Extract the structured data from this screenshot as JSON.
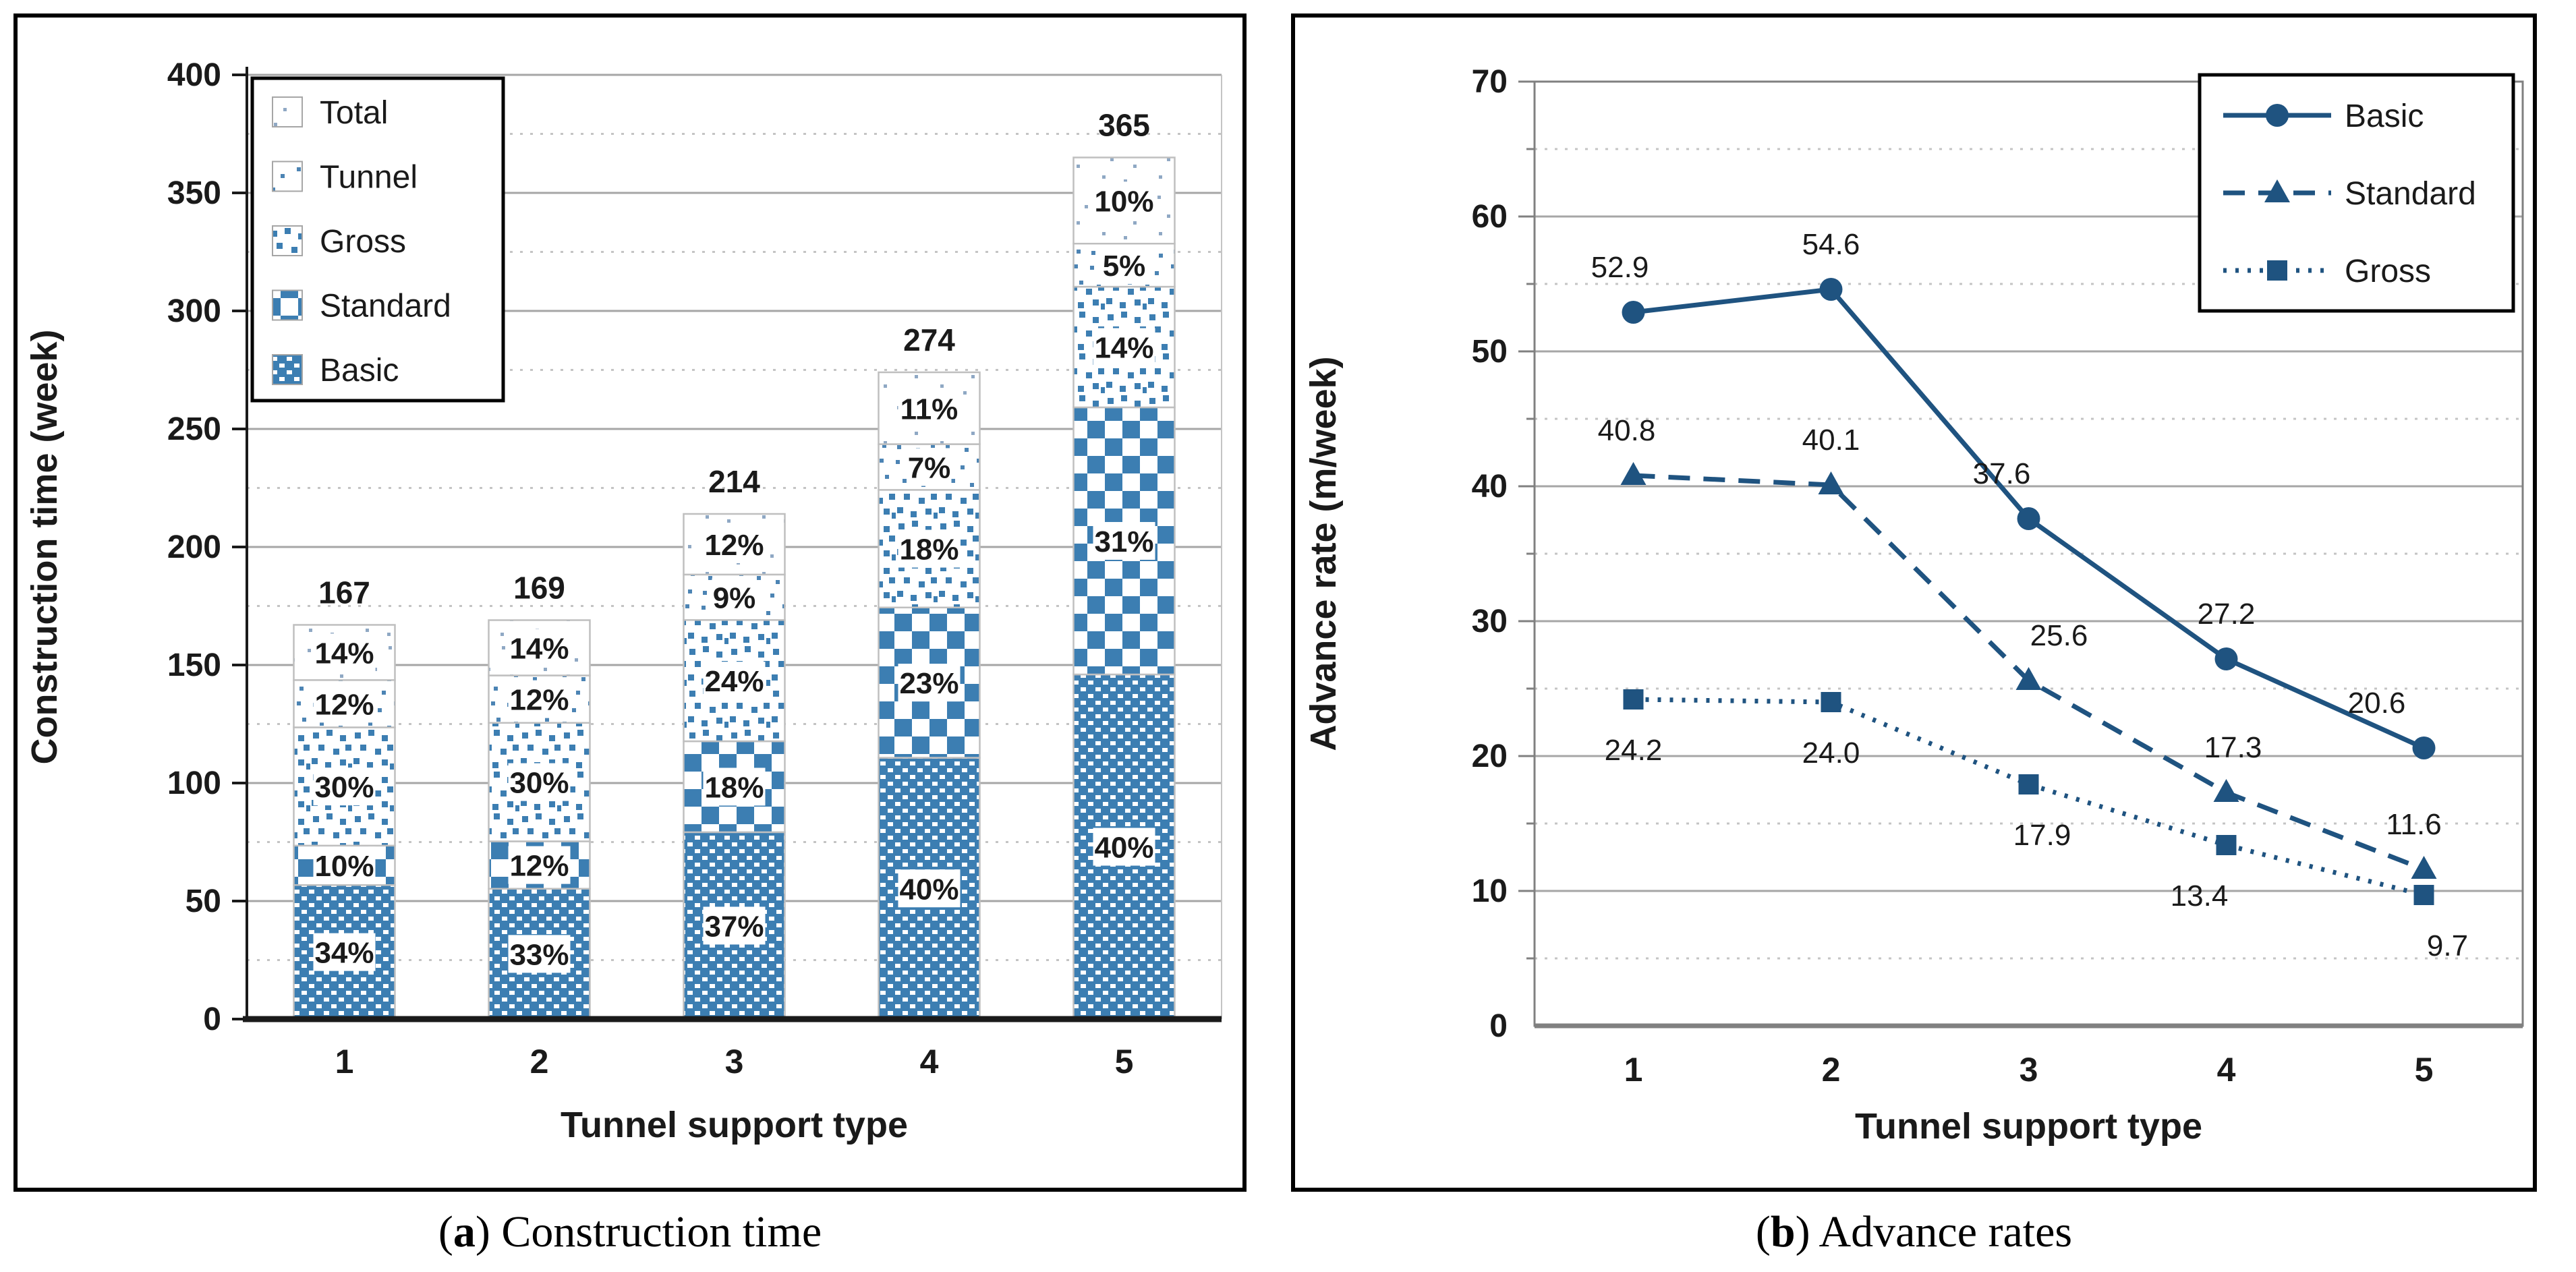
{
  "panels": [
    {
      "caption_open": "(",
      "caption_letter": "a",
      "caption_close": ") ",
      "caption_text": "Construction time"
    },
    {
      "caption_open": "(",
      "caption_letter": "b",
      "caption_close": ") ",
      "caption_text": "Advance rates"
    }
  ],
  "colors": {
    "bar_blue": "#3C7EB2",
    "tunnel_speck": "#4C84B4",
    "total_speck": "#8FA8C4",
    "line_blue": "#1F5380",
    "grid_major": "#A6A6A6",
    "grid_minor": "#C4C4C4",
    "axis_dark": "#1A1A1A",
    "axis_gray": "#808080",
    "segment_border": "#BFBFBF",
    "text": "#1A1A1A",
    "label_bg": "#FFFFFF",
    "legend_border": "#000000"
  },
  "chart_data": [
    {
      "type": "bar",
      "stacked": true,
      "title": "",
      "xlabel": "Tunnel support type",
      "ylabel": "Construction time (week)",
      "ylim": [
        0,
        400
      ],
      "ytick_major": 50,
      "ytick_minor": 25,
      "y_ticks": [
        "0",
        "50",
        "100",
        "150",
        "200",
        "250",
        "300",
        "350",
        "400"
      ],
      "categories": [
        "1",
        "2",
        "3",
        "4",
        "5"
      ],
      "totals": [
        167,
        169,
        214,
        274,
        365
      ],
      "total_labels": [
        "167",
        "169",
        "214",
        "274",
        "365"
      ],
      "series": [
        {
          "name": "Basic",
          "pattern": "basic",
          "pct": [
            34,
            33,
            37,
            40,
            40
          ],
          "pct_labels": [
            "34%",
            "33%",
            "37%",
            "40%",
            "40%"
          ]
        },
        {
          "name": "Standard",
          "pattern": "standard",
          "pct": [
            10,
            12,
            18,
            23,
            31
          ],
          "pct_labels": [
            "10%",
            "12%",
            "18%",
            "23%",
            "31%"
          ]
        },
        {
          "name": "Gross",
          "pattern": "gross",
          "pct": [
            30,
            30,
            24,
            18,
            14
          ],
          "pct_labels": [
            "30%",
            "30%",
            "24%",
            "18%",
            "14%"
          ]
        },
        {
          "name": "Tunnel",
          "pattern": "tunnel",
          "pct": [
            12,
            12,
            9,
            7,
            5
          ],
          "pct_labels": [
            "12%",
            "12%",
            "9%",
            "7%",
            "5%"
          ]
        },
        {
          "name": "Total",
          "pattern": "total",
          "pct": [
            14,
            14,
            12,
            11,
            10
          ],
          "pct_labels": [
            "14%",
            "14%",
            "12%",
            "11%",
            "10%"
          ]
        }
      ],
      "legend": [
        "Total",
        "Tunnel",
        "Gross",
        "Standard",
        "Basic"
      ],
      "legend_position": "top-left",
      "grid": {
        "major_solid": true,
        "minor_dotted": true
      }
    },
    {
      "type": "line",
      "title": "",
      "xlabel": "Tunnel support type",
      "ylabel": "Advance rate (m/week)",
      "ylim": [
        0,
        70
      ],
      "ytick_major": 10,
      "ytick_minor": 5,
      "y_ticks": [
        "0",
        "10",
        "20",
        "30",
        "40",
        "50",
        "60",
        "70"
      ],
      "x": [
        "1",
        "2",
        "3",
        "4",
        "5"
      ],
      "series": [
        {
          "name": "Basic",
          "line": "solid",
          "marker": "circle",
          "values": [
            52.9,
            54.6,
            37.6,
            27.2,
            20.6
          ],
          "labels": [
            "52.9",
            "54.6",
            "37.6",
            "27.2",
            "20.6"
          ],
          "label_side": "above",
          "label_dx": [
            -20,
            0,
            -40,
            0,
            -70
          ]
        },
        {
          "name": "Standard",
          "line": "dashed",
          "marker": "triangle",
          "values": [
            40.8,
            40.1,
            25.6,
            17.3,
            11.6
          ],
          "labels": [
            "40.8",
            "40.1",
            "25.6",
            "17.3",
            "11.6"
          ],
          "label_side": "above",
          "label_dx": [
            -10,
            0,
            45,
            10,
            -15
          ]
        },
        {
          "name": "Gross",
          "line": "dotted",
          "marker": "square",
          "values": [
            24.2,
            24.0,
            17.9,
            13.4,
            9.7
          ],
          "labels": [
            "24.2",
            "24.0",
            "17.9",
            "13.4",
            "9.7"
          ],
          "label_side": "below",
          "label_dx": [
            0,
            0,
            20,
            -40,
            35
          ]
        }
      ],
      "legend": [
        "Basic",
        "Standard",
        "Gross"
      ],
      "legend_position": "top-right",
      "grid": {
        "major_solid": true,
        "minor_dotted": true
      }
    }
  ]
}
